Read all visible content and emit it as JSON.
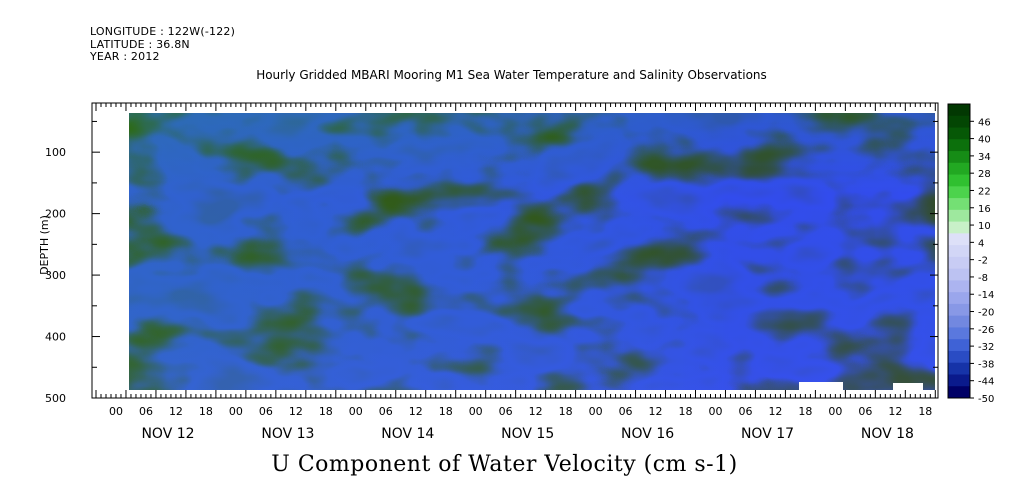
{
  "header": {
    "longitude": "LONGITUDE : 122W(-122)",
    "latitude": "LATITUDE : 36.8N",
    "year": "YEAR : 2012"
  },
  "chart_data": {
    "type": "heatmap",
    "title": "Hourly Gridded MBARI Mooring M1 Sea Water Temperature and Salinity Observations",
    "xlabel": "U Component of Water Velocity (cm s-1)",
    "ylabel": "DEPTH (m)",
    "ylim": [
      500,
      20
    ],
    "yticks": [
      100,
      200,
      300,
      400,
      500
    ],
    "hour_ticks": [
      "00",
      "06",
      "12",
      "18",
      "00",
      "06",
      "12",
      "18",
      "00",
      "06",
      "12",
      "18",
      "00",
      "06",
      "12",
      "18",
      "00",
      "06",
      "12",
      "18",
      "00",
      "06",
      "12",
      "18",
      "00",
      "06",
      "12",
      "18"
    ],
    "day_labels": [
      "NOV 12",
      "NOV 13",
      "NOV 14",
      "NOV 15",
      "NOV 16",
      "NOV 17",
      "NOV 18"
    ],
    "colorbar_levels": [
      "46",
      "40",
      "34",
      "28",
      "22",
      "16",
      "10",
      "4",
      "-2",
      "-8",
      "-14",
      "-20",
      "-26",
      "-32",
      "-38",
      "-44",
      "-50"
    ],
    "colorbar_range": [
      -50,
      52
    ],
    "colorbar_colors": [
      "#000066",
      "#0a1a8c",
      "#1633a8",
      "#2a4cc4",
      "#3f62d6",
      "#5a78de",
      "#7288e0",
      "#8898e6",
      "#9aa6ec",
      "#acb4f0",
      "#bcc2f2",
      "#c8ccf4",
      "#d2d6f6",
      "#dde0f8",
      "#c8f0c8",
      "#9ee89e",
      "#74e074",
      "#4cd34c",
      "#30c030",
      "#22a822",
      "#168c16",
      "#0c700c",
      "#065806",
      "#034603",
      "#023802"
    ],
    "grid": false
  }
}
